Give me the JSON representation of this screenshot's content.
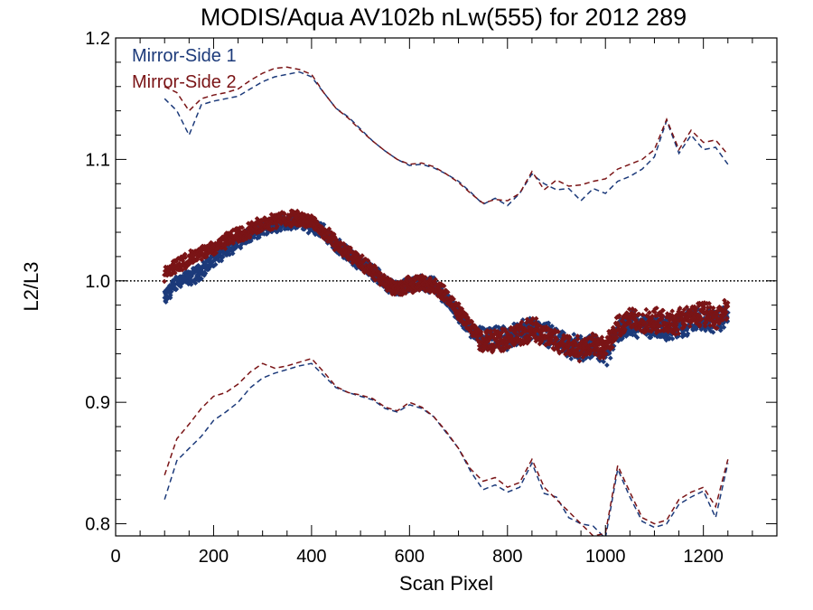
{
  "chart_data": {
    "type": "scatter",
    "title": "MODIS/Aqua AV102b nLw(555) for 2012 289",
    "xlabel": "Scan Pixel",
    "ylabel": "L2/L3",
    "xlim": [
      0,
      1350
    ],
    "ylim": [
      0.79,
      1.2
    ],
    "x_ticks": [
      0,
      200,
      400,
      600,
      800,
      1000,
      1200
    ],
    "x_tick_labels": [
      "0",
      "200",
      "400",
      "600",
      "800",
      "1000",
      "1200"
    ],
    "y_ticks": [
      0.8,
      0.9,
      1.0,
      1.1,
      1.2
    ],
    "y_tick_labels": [
      "0.8",
      "0.9",
      "1.0",
      "1.1",
      "1.2"
    ],
    "reference_line": {
      "y": 1.0,
      "style": "dotted"
    },
    "legend_position": "top-left",
    "series": [
      {
        "name": "Mirror-Side 1",
        "color": "#1c3a7a",
        "x": [
          100,
          125,
          150,
          175,
          200,
          225,
          250,
          275,
          300,
          325,
          350,
          375,
          400,
          425,
          450,
          475,
          500,
          525,
          550,
          575,
          600,
          625,
          650,
          675,
          700,
          725,
          750,
          775,
          800,
          825,
          850,
          875,
          900,
          925,
          950,
          975,
          1000,
          1025,
          1050,
          1075,
          1100,
          1125,
          1150,
          1175,
          1200,
          1225,
          1250
        ],
        "mean": [
          0.985,
          1.0,
          1.002,
          1.008,
          1.018,
          1.025,
          1.033,
          1.038,
          1.043,
          1.046,
          1.048,
          1.048,
          1.046,
          1.04,
          1.03,
          1.022,
          1.015,
          1.008,
          0.998,
          0.993,
          0.996,
          0.998,
          0.996,
          0.985,
          0.972,
          0.96,
          0.952,
          0.954,
          0.952,
          0.957,
          0.962,
          0.958,
          0.952,
          0.946,
          0.944,
          0.948,
          0.938,
          0.958,
          0.965,
          0.963,
          0.963,
          0.961,
          0.962,
          0.967,
          0.969,
          0.966,
          0.971
        ],
        "upper": [
          1.15,
          1.14,
          1.12,
          1.145,
          1.148,
          1.15,
          1.152,
          1.158,
          1.164,
          1.168,
          1.17,
          1.172,
          1.168,
          1.155,
          1.142,
          1.135,
          1.125,
          1.115,
          1.107,
          1.1,
          1.095,
          1.096,
          1.093,
          1.088,
          1.082,
          1.073,
          1.063,
          1.068,
          1.062,
          1.072,
          1.088,
          1.08,
          1.075,
          1.076,
          1.066,
          1.076,
          1.072,
          1.082,
          1.086,
          1.092,
          1.102,
          1.132,
          1.105,
          1.12,
          1.108,
          1.11,
          1.096
        ],
        "lower": [
          0.82,
          0.852,
          0.862,
          0.872,
          0.885,
          0.892,
          0.9,
          0.912,
          0.92,
          0.924,
          0.927,
          0.93,
          0.932,
          0.922,
          0.912,
          0.908,
          0.905,
          0.902,
          0.895,
          0.892,
          0.898,
          0.895,
          0.888,
          0.875,
          0.862,
          0.843,
          0.828,
          0.832,
          0.826,
          0.83,
          0.85,
          0.825,
          0.822,
          0.805,
          0.8,
          0.798,
          0.788,
          0.845,
          0.822,
          0.802,
          0.797,
          0.8,
          0.816,
          0.822,
          0.827,
          0.805,
          0.85
        ]
      },
      {
        "name": "Mirror-Side 2",
        "color": "#7a1416",
        "x": [
          100,
          125,
          150,
          175,
          200,
          225,
          250,
          275,
          300,
          325,
          350,
          375,
          400,
          425,
          450,
          475,
          500,
          525,
          550,
          575,
          600,
          625,
          650,
          675,
          700,
          725,
          750,
          775,
          800,
          825,
          850,
          875,
          900,
          925,
          950,
          975,
          1000,
          1025,
          1050,
          1075,
          1100,
          1125,
          1150,
          1175,
          1200,
          1225,
          1250
        ],
        "mean": [
          1.005,
          1.013,
          1.018,
          1.022,
          1.027,
          1.033,
          1.038,
          1.042,
          1.047,
          1.05,
          1.051,
          1.051,
          1.049,
          1.04,
          1.031,
          1.022,
          1.015,
          1.008,
          0.998,
          0.993,
          0.997,
          0.999,
          0.996,
          0.988,
          0.975,
          0.963,
          0.949,
          0.952,
          0.951,
          0.956,
          0.96,
          0.956,
          0.95,
          0.946,
          0.944,
          0.95,
          0.944,
          0.962,
          0.968,
          0.966,
          0.967,
          0.965,
          0.967,
          0.971,
          0.973,
          0.97,
          0.976
        ],
        "upper": [
          1.16,
          1.155,
          1.14,
          1.15,
          1.153,
          1.155,
          1.158,
          1.165,
          1.171,
          1.175,
          1.176,
          1.174,
          1.17,
          1.155,
          1.142,
          1.134,
          1.124,
          1.115,
          1.107,
          1.1,
          1.096,
          1.097,
          1.094,
          1.088,
          1.081,
          1.072,
          1.064,
          1.067,
          1.066,
          1.072,
          1.09,
          1.075,
          1.083,
          1.078,
          1.079,
          1.082,
          1.084,
          1.092,
          1.096,
          1.1,
          1.108,
          1.133,
          1.108,
          1.124,
          1.114,
          1.116,
          1.104
        ],
        "lower": [
          0.84,
          0.87,
          0.882,
          0.895,
          0.905,
          0.908,
          0.915,
          0.925,
          0.932,
          0.928,
          0.93,
          0.933,
          0.936,
          0.925,
          0.913,
          0.908,
          0.906,
          0.903,
          0.896,
          0.893,
          0.9,
          0.896,
          0.888,
          0.876,
          0.862,
          0.845,
          0.835,
          0.838,
          0.83,
          0.834,
          0.853,
          0.83,
          0.82,
          0.81,
          0.8,
          0.79,
          0.792,
          0.848,
          0.826,
          0.805,
          0.8,
          0.803,
          0.82,
          0.826,
          0.83,
          0.814,
          0.853
        ]
      }
    ]
  }
}
